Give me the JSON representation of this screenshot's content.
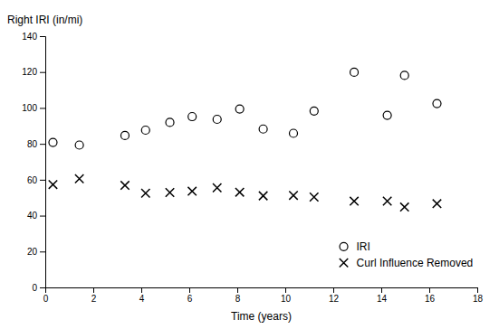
{
  "chart_data": {
    "type": "scatter",
    "x_label": "Time (years)",
    "y_label": "Right IRI (in/mi)",
    "series": [
      {
        "name": "IRI",
        "color": "black",
        "marker": "circle",
        "x": [
          0.32,
          1.42,
          3.32,
          4.18,
          5.19,
          6.12,
          7.16,
          8.1,
          9.08,
          10.34,
          11.2,
          12.87,
          14.25,
          14.97,
          16.32
        ],
        "values": [
          80.77,
          79.31,
          84.66,
          87.62,
          91.92,
          95.17,
          93.67,
          99.4,
          88.25,
          85.87,
          98.31,
          119.89,
          95.9,
          118.12,
          102.44
        ]
      },
      {
        "name": "Curl Influence Removed",
        "color": "black",
        "marker": "x",
        "x": [
          0.32,
          1.42,
          3.32,
          4.18,
          5.19,
          6.12,
          7.16,
          8.1,
          9.08,
          10.34,
          11.2,
          12.87,
          14.25,
          14.97,
          16.32
        ],
        "values": [
          57.34,
          60.54,
          56.86,
          52.5,
          52.89,
          53.58,
          55.54,
          53.06,
          51.05,
          51.28,
          50.33,
          48.04,
          48.11,
          44.77,
          46.65
        ]
      }
    ],
    "xlim": [
      0,
      18
    ],
    "ylim": [
      0,
      140
    ],
    "xticks": [
      0,
      2,
      4,
      6,
      8,
      10,
      12,
      14,
      16,
      18
    ],
    "yticks": [
      0,
      20,
      40,
      60,
      80,
      100,
      120,
      140
    ],
    "legend": "lower right"
  }
}
